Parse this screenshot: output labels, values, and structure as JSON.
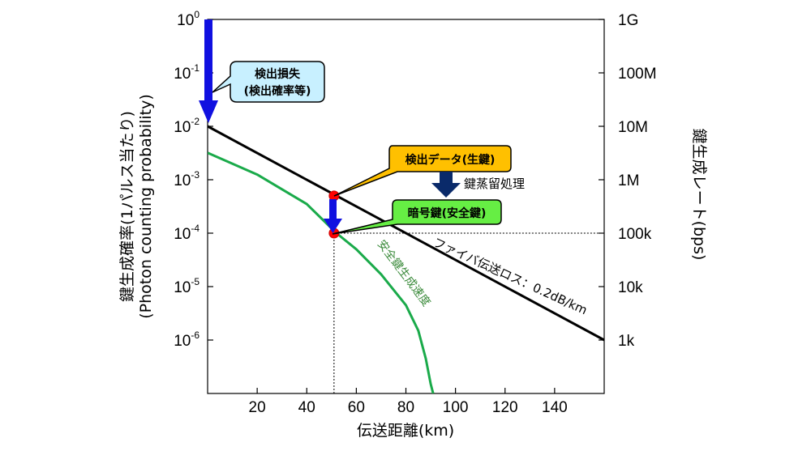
{
  "chart_data": {
    "type": "line",
    "xlabel": "伝送距離(km)",
    "ylabel_left": "鍵生成確率(1パルス当たり)",
    "ylabel_left_sub": "(Photon counting probability)",
    "ylabel_right": "鍵生成レート(bps)",
    "xlim": [
      0,
      160
    ],
    "ylim": [
      1e-07,
      1
    ],
    "yscale": "log",
    "x_ticks": [
      20,
      40,
      60,
      80,
      100,
      120,
      140
    ],
    "y_ticks_left": [
      {
        "value": 1,
        "base": "10",
        "exp": "0"
      },
      {
        "value": 0.1,
        "base": "10",
        "exp": "-1"
      },
      {
        "value": 0.01,
        "base": "10",
        "exp": "-2"
      },
      {
        "value": 0.001,
        "base": "10",
        "exp": "-3"
      },
      {
        "value": 0.0001,
        "base": "10",
        "exp": "-4"
      },
      {
        "value": 1e-05,
        "base": "10",
        "exp": "-5"
      },
      {
        "value": 1e-06,
        "base": "10",
        "exp": "-6"
      }
    ],
    "y_ticks_right": [
      {
        "value": 1,
        "label": "1G"
      },
      {
        "value": 0.1,
        "label": "100M"
      },
      {
        "value": 0.01,
        "label": "10M"
      },
      {
        "value": 0.001,
        "label": "1M"
      },
      {
        "value": 0.0001,
        "label": "100k"
      },
      {
        "value": 1e-05,
        "label": "10k"
      },
      {
        "value": 1e-06,
        "label": "1k"
      }
    ],
    "grid": false,
    "series": [
      {
        "color": "#000000",
        "x": [
          0,
          160
        ],
        "y": [
          0.01,
          1e-06
        ]
      },
      {
        "color": "#1aaa4a",
        "x": [
          0,
          20,
          40,
          52,
          60,
          70,
          80,
          85,
          88,
          90,
          91
        ],
        "y": [
          0.0032,
          0.00125,
          0.00035,
          0.0001,
          5e-05,
          1.7e-05,
          4.5e-06,
          1.5e-06,
          4.5e-07,
          1.5e-07,
          1e-07
        ]
      }
    ],
    "points": [
      {
        "x": 51,
        "y": 0.0005,
        "color": "#ff0000"
      },
      {
        "x": 51,
        "y": 0.0001,
        "color": "#ff0000"
      }
    ],
    "reference_lines": [
      {
        "x": 51,
        "y": 0.0001
      }
    ],
    "annotations": {
      "loss_callout_line1": "検出損失",
      "loss_callout_line2": "(検出確率等)",
      "detect_callout": "検出データ(生鍵)",
      "distill_label": "鍵蒸留処理",
      "crypto_callout": "暗号鍵(安全鍵)",
      "fiber_label": "ファイバ伝送ロス：0.2dB/km",
      "secure_rate_label": "安全鍵生成速度"
    },
    "colors": {
      "arrow_blue": "#1010e0",
      "arrow_navy": "#0a2a6a",
      "loss_callout_fill": "#c8f0ff",
      "detect_callout_fill": "#ffc000",
      "crypto_callout_fill": "#66ee44"
    }
  }
}
